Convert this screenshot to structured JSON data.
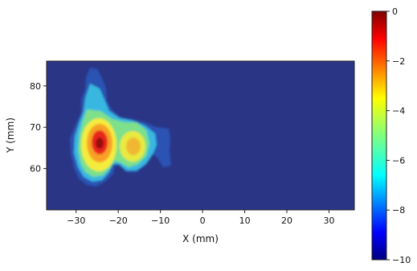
{
  "chart_data": {
    "type": "heatmap",
    "title": "",
    "xlabel": "X (mm)",
    "ylabel": "Y (mm)",
    "xlim": [
      -37,
      36
    ],
    "ylim": [
      50,
      86
    ],
    "xticks": [
      -30,
      -20,
      -10,
      0,
      10,
      20,
      30
    ],
    "yticks": [
      60,
      70,
      80
    ],
    "xtick_labels": [
      "−30",
      "−20",
      "−10",
      "0",
      "10",
      "20",
      "30"
    ],
    "ytick_labels": [
      "60",
      "70",
      "80"
    ],
    "colormap": "jet",
    "background_value": -10,
    "colorbar": {
      "range": [
        -10,
        0
      ],
      "ticks": [
        0,
        -2,
        -4,
        -6,
        -8,
        -10
      ],
      "tick_labels": [
        "0",
        "−2",
        "−4",
        "−6",
        "−8",
        "−10"
      ]
    },
    "peaks": [
      {
        "x": -24,
        "y": 65.5,
        "value": 0
      },
      {
        "x": -16,
        "y": 65,
        "value": -3
      }
    ]
  }
}
